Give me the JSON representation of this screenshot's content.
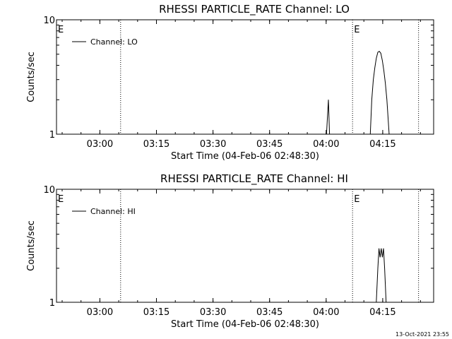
{
  "footer": {
    "timestamp": "13-Oct-2021 23:55"
  },
  "chart_data": [
    {
      "type": "line",
      "title": "RHESSI PARTICLE_RATE Channel: LO",
      "xlabel": "Start Time (04-Feb-06 02:48:30)",
      "ylabel": "Counts/sec",
      "yscale": "log",
      "ylim": [
        1,
        10
      ],
      "xlim_minutes_after_start": [
        0,
        100
      ],
      "x_tick_labels": [
        "03:00",
        "03:15",
        "03:30",
        "03:45",
        "04:00",
        "04:15"
      ],
      "x_tick_minutes_after_start": [
        11.5,
        26.5,
        41.5,
        56.5,
        71.5,
        86.5
      ],
      "y_tick_labels": [
        "1",
        "10"
      ],
      "legend": {
        "placement": "top-left",
        "entries": [
          "Channel: LO"
        ]
      },
      "event_markers": [
        {
          "minute": 0,
          "label": "E",
          "style": "solid"
        },
        {
          "minute": 17,
          "label": "",
          "style": "dotted"
        },
        {
          "minute": 78.5,
          "label": "E",
          "style": "dotted"
        },
        {
          "minute": 96,
          "label": "",
          "style": "dotted"
        }
      ],
      "series": [
        {
          "name": "Channel: LO",
          "points": [
            [
              71.6,
              1.0
            ],
            [
              72.1,
              2.0
            ],
            [
              72.4,
              1.0
            ],
            [
              83.2,
              1.0
            ],
            [
              83.6,
              2.0
            ],
            [
              84.0,
              3.0
            ],
            [
              84.4,
              3.8
            ],
            [
              84.8,
              4.6
            ],
            [
              85.2,
              5.2
            ],
            [
              85.6,
              5.3
            ],
            [
              86.0,
              5.1
            ],
            [
              86.4,
              4.4
            ],
            [
              86.8,
              3.6
            ],
            [
              87.2,
              2.8
            ],
            [
              87.6,
              2.0
            ],
            [
              88.2,
              1.0
            ]
          ]
        }
      ]
    },
    {
      "type": "line",
      "title": "RHESSI PARTICLE_RATE Channel: HI",
      "xlabel": "Start Time (04-Feb-06 02:48:30)",
      "ylabel": "Counts/sec",
      "yscale": "log",
      "ylim": [
        1,
        10
      ],
      "xlim_minutes_after_start": [
        0,
        100
      ],
      "x_tick_labels": [
        "03:00",
        "03:15",
        "03:30",
        "03:45",
        "04:00",
        "04:15"
      ],
      "x_tick_minutes_after_start": [
        11.5,
        26.5,
        41.5,
        56.5,
        71.5,
        86.5
      ],
      "y_tick_labels": [
        "1",
        "10"
      ],
      "legend": {
        "placement": "top-left",
        "entries": [
          "Channel: HI"
        ]
      },
      "event_markers": [
        {
          "minute": 0,
          "label": "E",
          "style": "solid"
        },
        {
          "minute": 17,
          "label": "",
          "style": "dotted"
        },
        {
          "minute": 78.5,
          "label": "E",
          "style": "dotted"
        },
        {
          "minute": 96,
          "label": "",
          "style": "dotted"
        }
      ],
      "series": [
        {
          "name": "Channel: HI",
          "points": [
            [
              84.8,
              1.0
            ],
            [
              85.2,
              2.0
            ],
            [
              85.5,
              3.0
            ],
            [
              85.8,
              2.5
            ],
            [
              86.1,
              3.0
            ],
            [
              86.4,
              2.5
            ],
            [
              86.7,
              3.0
            ],
            [
              87.0,
              2.0
            ],
            [
              87.4,
              1.0
            ]
          ]
        }
      ]
    }
  ]
}
